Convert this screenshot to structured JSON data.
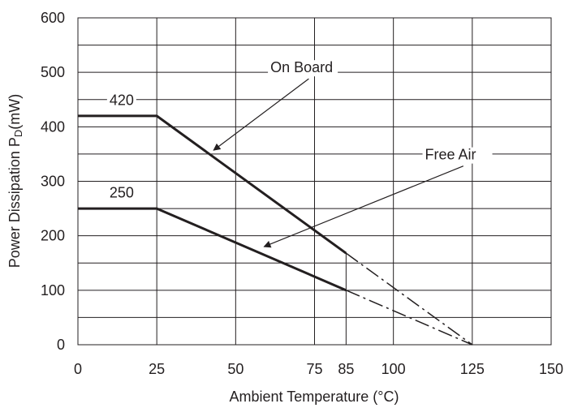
{
  "chart_data": {
    "type": "line",
    "title": "",
    "xlabel": "Ambient Temperature (°C)",
    "ylabel_main": "Power Dissipation P",
    "ylabel_sub": "D",
    "ylabel_tail": "(mW)",
    "xlim": [
      0,
      150
    ],
    "ylim": [
      0,
      600
    ],
    "x_ticks": [
      0,
      25,
      50,
      75,
      85,
      100,
      125,
      150
    ],
    "y_ticks": [
      0,
      100,
      200,
      300,
      400,
      500,
      600
    ],
    "x_gridlines": [
      0,
      25,
      50,
      75,
      100,
      125,
      150
    ],
    "y_gridlines": [
      0,
      50,
      100,
      150,
      200,
      250,
      300,
      350,
      400,
      450,
      500,
      550,
      600
    ],
    "grid": true,
    "series": [
      {
        "name": "On Board",
        "solid": [
          [
            0,
            420
          ],
          [
            25,
            420
          ],
          [
            85,
            168
          ]
        ],
        "dashed": [
          [
            85,
            168
          ],
          [
            125,
            0
          ]
        ]
      },
      {
        "name": "Free Air",
        "solid": [
          [
            0,
            250
          ],
          [
            25,
            250
          ],
          [
            85,
            100
          ]
        ],
        "dashed": [
          [
            85,
            100
          ],
          [
            125,
            0
          ]
        ]
      }
    ],
    "annotations": [
      {
        "text": "420",
        "x": 10,
        "y": 440
      },
      {
        "text": "250",
        "x": 10,
        "y": 270
      },
      {
        "text": "On Board",
        "x": 61,
        "y": 500,
        "arrow_to": [
          43,
          357
        ]
      },
      {
        "text": "Free Air",
        "x": 110,
        "y": 340,
        "arrow_to": [
          59,
          180
        ]
      }
    ],
    "vertical_marker": {
      "x": 85,
      "y_top": 168
    }
  }
}
